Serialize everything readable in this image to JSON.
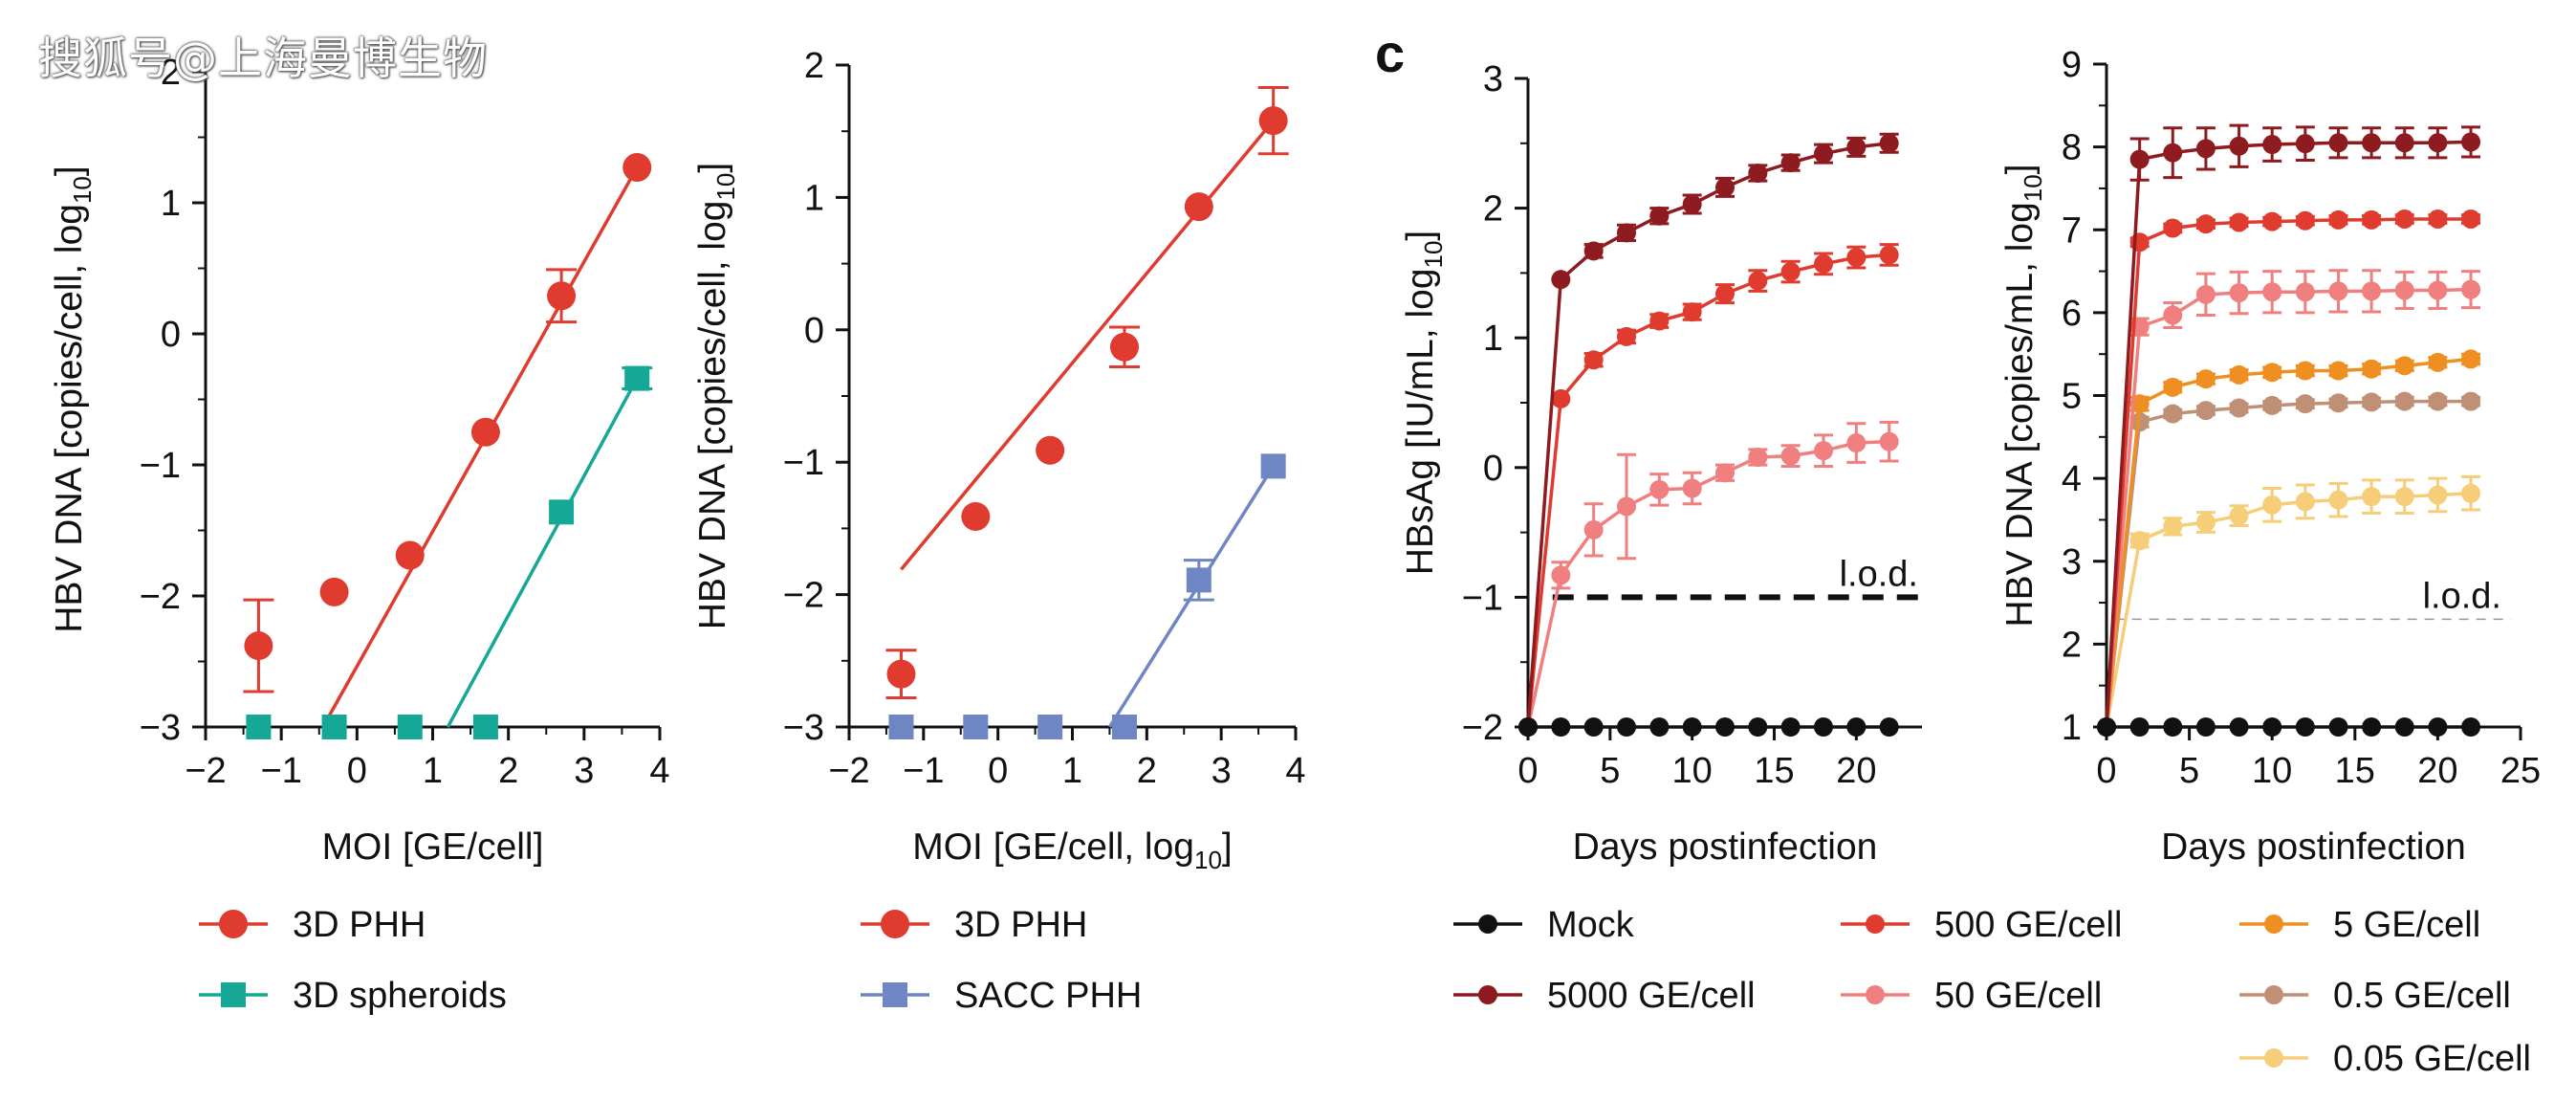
{
  "watermark": "搜狐号@上海曼博生物",
  "panel_label_c": "c",
  "lod_label": "l.o.d.",
  "colors": {
    "red": "#e03b2f",
    "teal": "#15a896",
    "blue": "#6f86c4",
    "mock": "#111111",
    "ge5000": "#8e1b1f",
    "ge500": "#e03b2f",
    "ge50": "#f07f7f",
    "ge5": "#ef8f22",
    "ge05": "#c09076",
    "ge005": "#f6cd78"
  },
  "legends": {
    "panel1": [
      {
        "label": "3D PHH",
        "color": "#e03b2f",
        "marker": "circle"
      },
      {
        "label": "3D spheroids",
        "color": "#15a896",
        "marker": "square"
      }
    ],
    "panel2": [
      {
        "label": "3D PHH",
        "color": "#e03b2f",
        "marker": "circle"
      },
      {
        "label": "SACC PHH",
        "color": "#6f86c4",
        "marker": "square"
      }
    ],
    "panelC": [
      {
        "label": "Mock",
        "color": "#111111"
      },
      {
        "label": "5000 GE/cell",
        "color": "#8e1b1f"
      },
      {
        "label": "500 GE/cell",
        "color": "#e03b2f"
      },
      {
        "label": "50 GE/cell",
        "color": "#f07f7f"
      },
      {
        "label": "5 GE/cell",
        "color": "#ef8f22"
      },
      {
        "label": "0.5 GE/cell",
        "color": "#c09076"
      },
      {
        "label": "0.05 GE/cell",
        "color": "#f6cd78"
      }
    ]
  },
  "chart_data": [
    {
      "id": "panel1",
      "type": "scatter",
      "title": "",
      "xlabel": "MOI [GE/cell]",
      "ylabel": "HBV DNA [copies/cell, log",
      "ylabel_sub": "10",
      "ylabel_end": "]",
      "xlim": [
        -2,
        4
      ],
      "ylim": [
        -3,
        2
      ],
      "xticks": [
        -2,
        -1,
        0,
        1,
        2,
        3,
        4
      ],
      "yticks": [
        -3,
        -2,
        -1,
        0,
        1,
        2
      ],
      "series": [
        {
          "name": "3D PHH",
          "color": "#e03b2f",
          "marker": "circle",
          "points": [
            {
              "x": -1.3,
              "y": -2.38,
              "err": 0.35
            },
            {
              "x": -0.3,
              "y": -1.97
            },
            {
              "x": 0.7,
              "y": -1.69
            },
            {
              "x": 1.7,
              "y": -0.75
            },
            {
              "x": 2.7,
              "y": 0.29,
              "err": 0.2
            },
            {
              "x": 3.7,
              "y": 1.27
            }
          ],
          "fit": [
            [
              -0.45,
              -3.0
            ],
            [
              3.7,
              1.27
            ]
          ]
        },
        {
          "name": "3D spheroids",
          "color": "#15a896",
          "marker": "square",
          "points": [
            {
              "x": -1.3,
              "y": -3.0
            },
            {
              "x": -0.3,
              "y": -3.0
            },
            {
              "x": 0.7,
              "y": -3.0
            },
            {
              "x": 1.7,
              "y": -3.0
            },
            {
              "x": 2.7,
              "y": -1.36
            },
            {
              "x": 3.7,
              "y": -0.34,
              "err": 0.08
            }
          ],
          "fit": [
            [
              1.2,
              -3.0
            ],
            [
              3.7,
              -0.34
            ]
          ]
        }
      ]
    },
    {
      "id": "panel2",
      "type": "scatter",
      "title": "",
      "xlabel": "MOI [GE/cell, log",
      "xlabel_sub": "10",
      "xlabel_end": "]",
      "ylabel": "HBV DNA [copies/cell, log",
      "ylabel_sub": "10",
      "ylabel_end": "]",
      "xlim": [
        -2,
        4
      ],
      "ylim": [
        -3,
        2
      ],
      "xticks": [
        -2,
        -1,
        0,
        1,
        2,
        3,
        4
      ],
      "yticks": [
        -3,
        -2,
        -1,
        0,
        1,
        2
      ],
      "series": [
        {
          "name": "3D PHH",
          "color": "#e03b2f",
          "marker": "circle",
          "points": [
            {
              "x": -1.3,
              "y": -2.6,
              "err": 0.18
            },
            {
              "x": -0.3,
              "y": -1.41
            },
            {
              "x": 0.7,
              "y": -0.91
            },
            {
              "x": 1.7,
              "y": -0.13,
              "err": 0.15
            },
            {
              "x": 2.7,
              "y": 0.93
            },
            {
              "x": 3.7,
              "y": 1.58,
              "err": 0.25
            }
          ],
          "fit": [
            [
              -1.3,
              -1.81
            ],
            [
              3.7,
              1.58
            ]
          ]
        },
        {
          "name": "SACC PHH",
          "color": "#6f86c4",
          "marker": "square",
          "points": [
            {
              "x": -1.3,
              "y": -3.0
            },
            {
              "x": -0.3,
              "y": -3.0
            },
            {
              "x": 0.7,
              "y": -3.0
            },
            {
              "x": 1.7,
              "y": -3.0
            },
            {
              "x": 2.7,
              "y": -1.89,
              "err": 0.15
            },
            {
              "x": 3.7,
              "y": -1.03
            }
          ],
          "fit": [
            [
              1.5,
              -3.0
            ],
            [
              3.7,
              -1.03
            ]
          ]
        }
      ]
    },
    {
      "id": "panelC1",
      "type": "line",
      "title": "",
      "xlabel": "Days postinfection",
      "ylabel": "HBsAg [IU/mL, log",
      "ylabel_sub": "10",
      "ylabel_end": "]",
      "xlim": [
        0,
        24
      ],
      "ylim": [
        -2,
        3
      ],
      "xticks": [
        0,
        5,
        10,
        15,
        20
      ],
      "yticks": [
        -2,
        -1,
        0,
        1,
        2,
        3
      ],
      "lod": -1,
      "x": [
        0,
        2,
        4,
        6,
        8,
        10,
        12,
        14,
        16,
        18,
        20,
        22
      ],
      "series": [
        {
          "name": "Mock",
          "color": "#111111",
          "values": [
            -2,
            -2,
            -2,
            -2,
            -2,
            -2,
            -2,
            -2,
            -2,
            -2,
            -2,
            -2
          ],
          "err": [
            0,
            0,
            0,
            0,
            0,
            0,
            0,
            0,
            0,
            0,
            0,
            0
          ]
        },
        {
          "name": "5000 GE/cell",
          "color": "#8e1b1f",
          "values": [
            -2,
            1.45,
            1.67,
            1.81,
            1.94,
            2.03,
            2.16,
            2.27,
            2.35,
            2.42,
            2.47,
            2.5
          ],
          "err": [
            0,
            0,
            0.05,
            0.06,
            0.06,
            0.07,
            0.07,
            0.06,
            0.06,
            0.07,
            0.07,
            0.07
          ]
        },
        {
          "name": "500 GE/cell",
          "color": "#e03b2f",
          "values": [
            -2,
            0.53,
            0.83,
            1.01,
            1.13,
            1.2,
            1.34,
            1.44,
            1.51,
            1.57,
            1.62,
            1.64
          ],
          "err": [
            0,
            0,
            0.05,
            0.05,
            0.05,
            0.06,
            0.07,
            0.08,
            0.08,
            0.08,
            0.08,
            0.08
          ]
        },
        {
          "name": "50 GE/cell",
          "color": "#f07f7f",
          "values": [
            -2,
            -0.83,
            -0.48,
            -0.3,
            -0.17,
            -0.16,
            -0.04,
            0.08,
            0.09,
            0.13,
            0.19,
            0.2
          ],
          "err": [
            0,
            0.1,
            0.2,
            0.4,
            0.12,
            0.12,
            0.06,
            0.06,
            0.08,
            0.12,
            0.15,
            0.15
          ]
        }
      ]
    },
    {
      "id": "panelC2",
      "type": "line",
      "title": "",
      "xlabel": "Days postinfection",
      "ylabel": "HBV DNA [copies/mL, log",
      "ylabel_sub": "10",
      "ylabel_end": "]",
      "xlim": [
        0,
        25
      ],
      "ylim": [
        1,
        9
      ],
      "xticks": [
        0,
        5,
        10,
        15,
        20,
        25
      ],
      "yticks": [
        1,
        2,
        3,
        4,
        5,
        6,
        7,
        8,
        9
      ],
      "lod": 2.3,
      "x": [
        0,
        2,
        4,
        6,
        8,
        10,
        12,
        14,
        16,
        18,
        20,
        22
      ],
      "series": [
        {
          "name": "Mock",
          "color": "#111111",
          "values": [
            1,
            1,
            1,
            1,
            1,
            1,
            1,
            1,
            1,
            1,
            1,
            1
          ],
          "err": [
            0,
            0,
            0,
            0,
            0,
            0,
            0,
            0,
            0,
            0,
            0,
            0
          ]
        },
        {
          "name": "5000 GE/cell",
          "color": "#8e1b1f",
          "values": [
            1,
            7.85,
            7.93,
            7.98,
            8.01,
            8.03,
            8.04,
            8.05,
            8.05,
            8.05,
            8.05,
            8.06
          ],
          "err": [
            0,
            0.25,
            0.3,
            0.25,
            0.25,
            0.2,
            0.2,
            0.18,
            0.18,
            0.18,
            0.18,
            0.18
          ]
        },
        {
          "name": "500 GE/cell",
          "color": "#e03b2f",
          "values": [
            1,
            6.85,
            7.02,
            7.07,
            7.09,
            7.1,
            7.11,
            7.12,
            7.12,
            7.13,
            7.13,
            7.13
          ],
          "err": [
            0,
            0.05,
            0.05,
            0.05,
            0.05,
            0.05,
            0.05,
            0.05,
            0.05,
            0.05,
            0.05,
            0.05
          ]
        },
        {
          "name": "50 GE/cell",
          "color": "#f07f7f",
          "values": [
            1,
            5.83,
            5.97,
            6.22,
            6.24,
            6.25,
            6.25,
            6.26,
            6.26,
            6.27,
            6.27,
            6.28
          ],
          "err": [
            0,
            0.1,
            0.15,
            0.25,
            0.25,
            0.25,
            0.25,
            0.25,
            0.25,
            0.22,
            0.22,
            0.22
          ]
        },
        {
          "name": "5 GE/cell",
          "color": "#ef8f22",
          "values": [
            1,
            4.9,
            5.1,
            5.2,
            5.25,
            5.28,
            5.3,
            5.3,
            5.32,
            5.36,
            5.4,
            5.44
          ],
          "err": [
            0,
            0.08,
            0.06,
            0.06,
            0.06,
            0.06,
            0.06,
            0.06,
            0.06,
            0.06,
            0.06,
            0.06
          ]
        },
        {
          "name": "0.5 GE/cell",
          "color": "#c09076",
          "values": [
            1,
            4.68,
            4.78,
            4.82,
            4.85,
            4.88,
            4.9,
            4.91,
            4.92,
            4.93,
            4.93,
            4.93
          ],
          "err": [
            0,
            0.06,
            0.05,
            0.05,
            0.05,
            0.05,
            0.05,
            0.05,
            0.05,
            0.05,
            0.05,
            0.05
          ]
        },
        {
          "name": "0.05 GE/cell",
          "color": "#f6cd78",
          "values": [
            1,
            3.25,
            3.42,
            3.47,
            3.55,
            3.68,
            3.72,
            3.74,
            3.78,
            3.78,
            3.8,
            3.82
          ],
          "err": [
            0,
            0.08,
            0.1,
            0.12,
            0.12,
            0.2,
            0.2,
            0.2,
            0.2,
            0.2,
            0.2,
            0.2
          ]
        }
      ]
    }
  ]
}
